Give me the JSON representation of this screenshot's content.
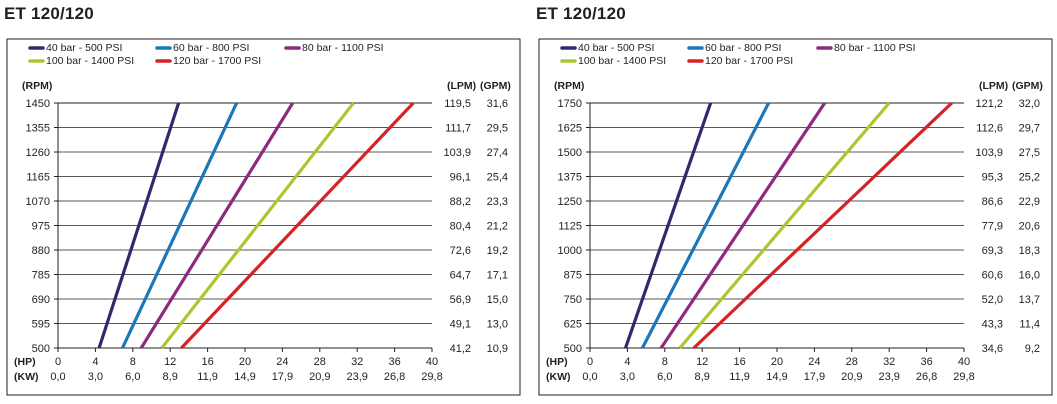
{
  "colors": {
    "40 bar - 500 PSI": "#2e2a6e",
    "60 bar - 800 PSI": "#1a77b9",
    "80 bar - 1100 PSI": "#8b2a7e",
    "100 bar - 1400 PSI": "#a8c92e",
    "120 bar - 1700 PSI": "#d42324"
  },
  "chart_data": [
    {
      "type": "line",
      "title": "ET 120/120",
      "legend": [
        "40 bar - 500 PSI",
        "60 bar - 800 PSI",
        "80 bar - 1100 PSI",
        "100 bar - 1400 PSI",
        "120 bar - 1700 PSI"
      ],
      "legend_placement": "top-left",
      "ylabel": "(RPM)",
      "right_labels": [
        "(LPM)",
        "(GPM)"
      ],
      "xlabel": [
        "(HP)",
        "(KW)"
      ],
      "grid": true,
      "xlim": [
        0,
        40
      ],
      "ylim": [
        500,
        1450
      ],
      "yticks": [
        "500",
        "595",
        "690",
        "785",
        "880",
        "975",
        "1070",
        "1165",
        "1260",
        "1355",
        "1450"
      ],
      "lpm": [
        "41,2",
        "49,1",
        "56,9",
        "64,7",
        "72,6",
        "80,4",
        "88,2",
        "96,1",
        "103,9",
        "111,7",
        "119,5"
      ],
      "gpm": [
        "10,9",
        "13,0",
        "15,0",
        "17,1",
        "19,2",
        "21,2",
        "23,3",
        "25,4",
        "27,4",
        "29,5",
        "31,6"
      ],
      "hp_ticks": [
        "0",
        "4",
        "8",
        "12",
        "16",
        "20",
        "24",
        "28",
        "32",
        "36",
        "40"
      ],
      "kw_ticks": [
        "0,0",
        "3,0",
        "6,0",
        "8,9",
        "11,9",
        "14,9",
        "17,9",
        "20,9",
        "23,9",
        "26,8",
        "29,8"
      ],
      "series": [
        {
          "name": "40 bar - 500 PSI",
          "x": [
            4.4,
            12.9
          ],
          "y": [
            500,
            1450
          ]
        },
        {
          "name": "60 bar - 800 PSI",
          "x": [
            6.9,
            19.1
          ],
          "y": [
            500,
            1450
          ]
        },
        {
          "name": "80 bar - 1100 PSI",
          "x": [
            8.9,
            25.1
          ],
          "y": [
            500,
            1450
          ]
        },
        {
          "name": "100 bar - 1400 PSI",
          "x": [
            11.1,
            31.6
          ],
          "y": [
            500,
            1450
          ]
        },
        {
          "name": "120 bar - 1700 PSI",
          "x": [
            13.2,
            38.0
          ],
          "y": [
            500,
            1450
          ]
        }
      ]
    },
    {
      "type": "line",
      "title": "ET 120/120",
      "legend": [
        "40 bar - 500 PSI",
        "60 bar - 800 PSI",
        "80 bar - 1100 PSI",
        "100 bar - 1400 PSI",
        "120 bar - 1700 PSI"
      ],
      "legend_placement": "top-left",
      "ylabel": "(RPM)",
      "right_labels": [
        "(LPM)",
        "(GPM)"
      ],
      "xlabel": [
        "(HP)",
        "(KW)"
      ],
      "grid": true,
      "xlim": [
        0,
        40
      ],
      "ylim": [
        500,
        1750
      ],
      "yticks": [
        "500",
        "625",
        "750",
        "875",
        "1000",
        "1125",
        "1250",
        "1375",
        "1500",
        "1625",
        "1750"
      ],
      "lpm": [
        "34,6",
        "43,3",
        "52,0",
        "60,6",
        "69,3",
        "77,9",
        "86,6",
        "95,3",
        "103,9",
        "112,6",
        "121,2"
      ],
      "gpm": [
        "9,2",
        "11,4",
        "13,7",
        "16,0",
        "18,3",
        "20,6",
        "22,9",
        "25,2",
        "27,5",
        "29,7",
        "32,0"
      ],
      "hp_ticks": [
        "0",
        "4",
        "8",
        "12",
        "16",
        "20",
        "24",
        "28",
        "32",
        "36",
        "40"
      ],
      "kw_ticks": [
        "0,0",
        "3,0",
        "6,0",
        "8,9",
        "11,9",
        "14,9",
        "17,9",
        "20,9",
        "23,9",
        "26,8",
        "29,8"
      ],
      "series": [
        {
          "name": "40 bar - 500 PSI",
          "x": [
            3.8,
            12.9
          ],
          "y": [
            500,
            1750
          ]
        },
        {
          "name": "60 bar - 800 PSI",
          "x": [
            5.6,
            19.1
          ],
          "y": [
            500,
            1750
          ]
        },
        {
          "name": "80 bar - 1100 PSI",
          "x": [
            7.6,
            25.1
          ],
          "y": [
            500,
            1750
          ]
        },
        {
          "name": "100 bar - 1400 PSI",
          "x": [
            9.6,
            32.0
          ],
          "y": [
            500,
            1750
          ]
        },
        {
          "name": "120 bar - 1700 PSI",
          "x": [
            11.1,
            38.7
          ],
          "y": [
            500,
            1750
          ]
        }
      ]
    }
  ]
}
